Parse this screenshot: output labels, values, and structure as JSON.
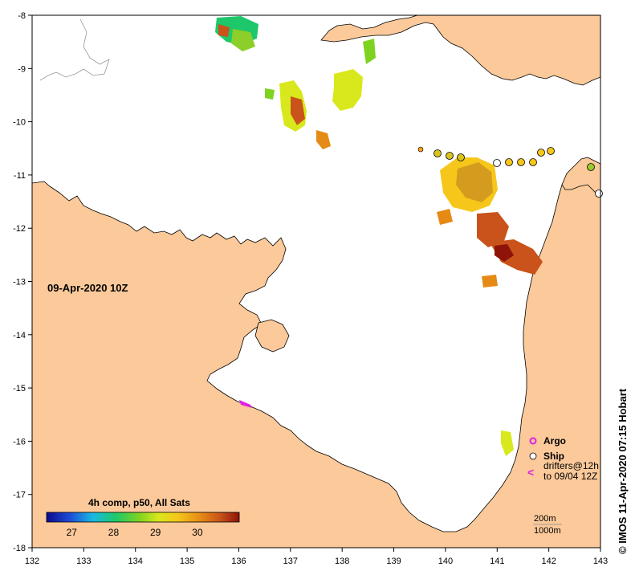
{
  "map": {
    "date_label": "09-Apr-2020 10Z",
    "credit": "© IMOS 11-Apr-2020 07:15 Hobart",
    "lon_ticks": [
      "132",
      "133",
      "134",
      "135",
      "136",
      "137",
      "138",
      "139",
      "140",
      "141",
      "142",
      "143"
    ],
    "lat_ticks": [
      "-8",
      "-9",
      "-10",
      "-11",
      "-12",
      "-13",
      "-14",
      "-15",
      "-16",
      "-17",
      "-18"
    ],
    "colors": {
      "land": "#fbc99a",
      "sea": "#ffffff",
      "coast": "#000000"
    }
  },
  "colorbar": {
    "title": "4h comp, p50, All Sats",
    "ticks": [
      "27",
      "28",
      "29",
      "30"
    ],
    "range": [
      26.4,
      31.0
    ],
    "stops": [
      "#0b0b8f",
      "#1d4cd6",
      "#18b9e0",
      "#1ec86a",
      "#7ed321",
      "#d8e81c",
      "#f6c61a",
      "#e58a14",
      "#c9531a",
      "#8f1308"
    ]
  },
  "legend": {
    "argo_label": "Argo",
    "ship_label": "Ship",
    "drifters_line1": "drifters@12h",
    "drifters_line2": "to 09/04 12Z",
    "argo_color": "#e020e0",
    "drifter_color": "#e020e0"
  },
  "scale": {
    "line1": "200m",
    "line2": "1000m"
  }
}
